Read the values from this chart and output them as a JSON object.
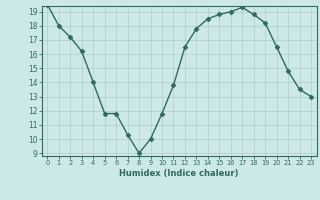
{
  "x": [
    0,
    1,
    2,
    3,
    4,
    5,
    6,
    7,
    8,
    9,
    10,
    11,
    12,
    13,
    14,
    15,
    16,
    17,
    18,
    19,
    20,
    21,
    22,
    23
  ],
  "y": [
    19.5,
    18.0,
    17.2,
    16.2,
    14.0,
    11.8,
    11.8,
    10.3,
    9.0,
    10.0,
    11.8,
    13.8,
    16.5,
    17.8,
    18.5,
    18.8,
    19.0,
    19.3,
    18.8,
    18.2,
    16.5,
    14.8,
    13.5,
    13.0
  ],
  "ylim": [
    9,
    19
  ],
  "xlim": [
    -0.5,
    23.5
  ],
  "yticks": [
    9,
    10,
    11,
    12,
    13,
    14,
    15,
    16,
    17,
    18,
    19
  ],
  "xticks": [
    0,
    1,
    2,
    3,
    4,
    5,
    6,
    7,
    8,
    9,
    10,
    11,
    12,
    13,
    14,
    15,
    16,
    17,
    18,
    19,
    20,
    21,
    22,
    23
  ],
  "xlabel": "Humidex (Indice chaleur)",
  "line_color": "#2e6b5e",
  "marker": "D",
  "marker_size": 2.5,
  "bg_color": "#cde8e8",
  "grid_color": "#b0cccc",
  "tick_label_color": "#2e6b5e",
  "label_color": "#2e6b5e"
}
